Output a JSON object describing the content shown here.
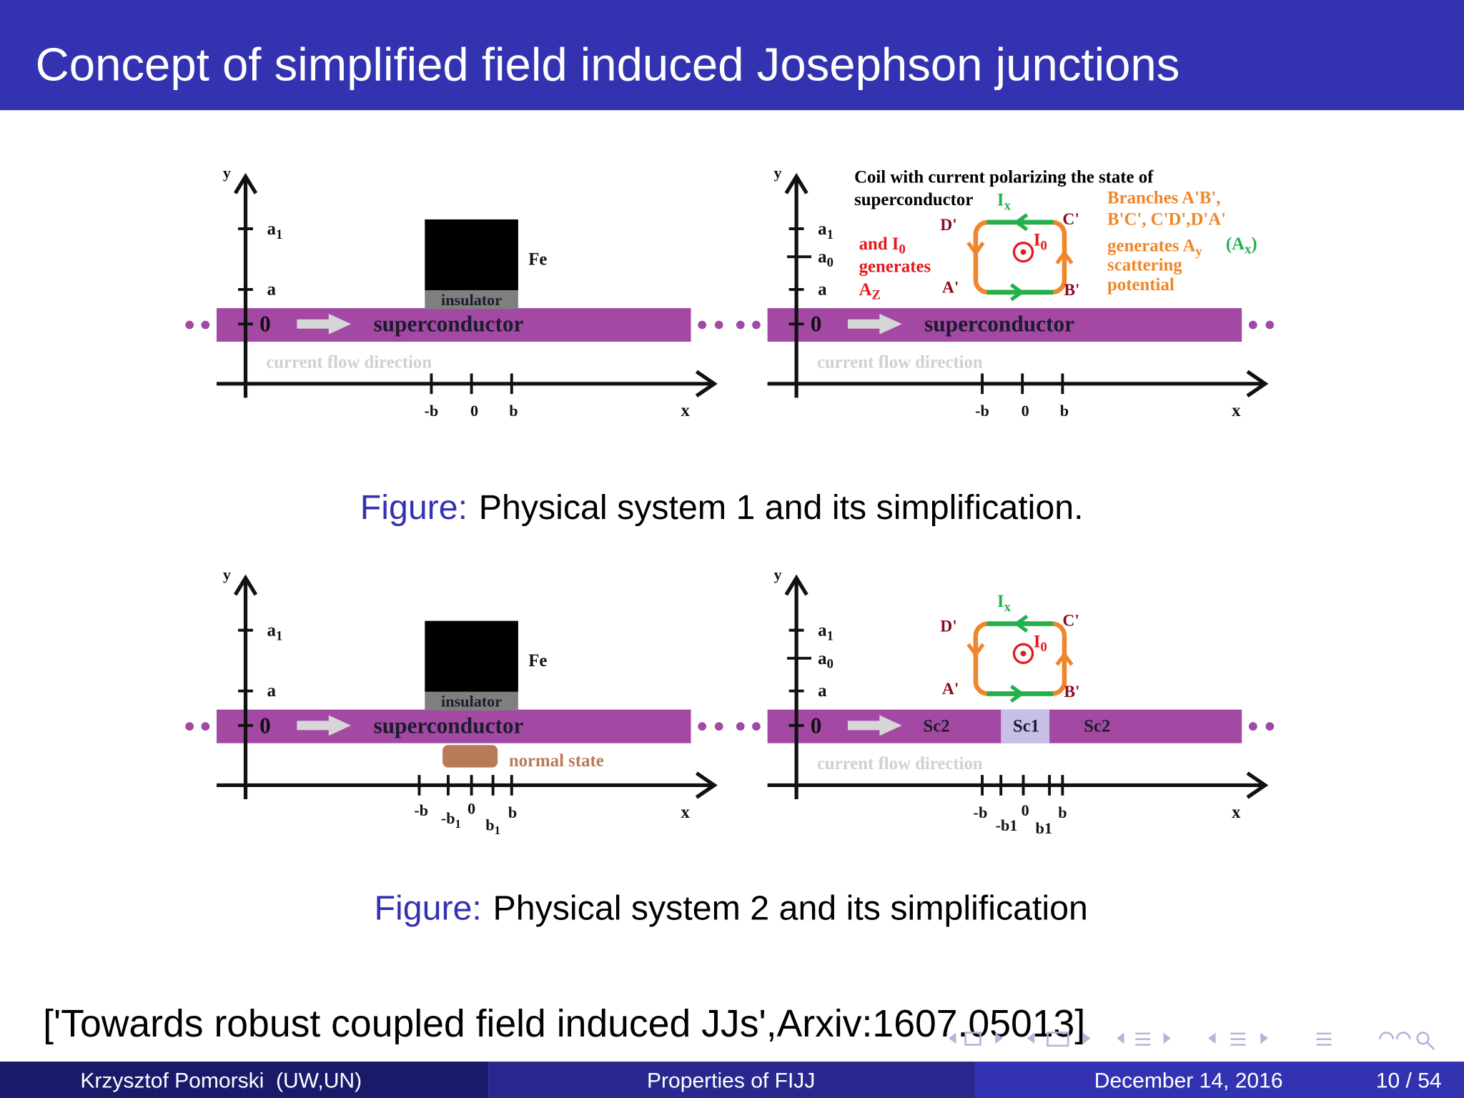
{
  "header": {
    "title": "Concept of simplified field induced Josephson junctions"
  },
  "figures": [
    {
      "panels": [
        {
          "y_label": "y",
          "x_label": "x",
          "y_ticks": [
            {
              "base": "a",
              "sub": "1"
            },
            "a",
            "0"
          ],
          "x_ticks": [
            "-b",
            "0",
            "b"
          ],
          "bar_labels": [
            "superconductor"
          ],
          "flow_label": "current flow direction",
          "fe": {
            "label": "Fe",
            "insulator": "insulator"
          }
        },
        {
          "y_label": "y",
          "x_label": "x",
          "y_ticks": [
            {
              "base": "a",
              "sub": "1"
            },
            {
              "base": "a",
              "sub": "0"
            },
            "a",
            "0"
          ],
          "x_ticks": [
            "-b",
            "0",
            "b"
          ],
          "bar_labels": [
            "superconductor"
          ],
          "flow_label": "current flow direction",
          "coil": {
            "current": {
              "base": "I",
              "sub": "x"
            },
            "corners": [
              "D'",
              "C'",
              "A'",
              "B'"
            ],
            "inner": {
              "base": "I",
              "sub": "0"
            }
          },
          "heading": [
            "Coil with current polarizing the state of",
            "superconductor"
          ],
          "red_note": [
            {
              "base": "and I",
              "sub": "0"
            },
            "generates",
            {
              "base": "A",
              "sub": "Z"
            }
          ],
          "orange_note": [
            "Branches A'B',",
            "B'C', C'D',D'A'",
            {
              "base": "generates A",
              "sub": "y"
            },
            "scattering",
            "potential"
          ],
          "green_note": {
            "base": "(A",
            "sub": "x",
            "tail": ")"
          }
        }
      ],
      "caption": {
        "label": "Figure:",
        "text": "Physical system 1 and its simplification."
      }
    },
    {
      "panels": [
        {
          "y_label": "y",
          "x_label": "x",
          "y_ticks": [
            {
              "base": "a",
              "sub": "1"
            },
            "a",
            "0"
          ],
          "x_ticks": [
            "-b",
            {
              "base": "-b",
              "sub": "1"
            },
            "0",
            {
              "base": "b",
              "sub": "1"
            },
            "b"
          ],
          "bar_labels": [
            "superconductor"
          ],
          "fe": {
            "label": "Fe",
            "insulator": "insulator"
          },
          "normal_state": "normal state"
        },
        {
          "y_label": "y",
          "x_label": "x",
          "y_ticks": [
            {
              "base": "a",
              "sub": "1"
            },
            {
              "base": "a",
              "sub": "0"
            },
            "a",
            "0"
          ],
          "x_ticks": [
            "-b",
            "-b1",
            "0",
            "b1",
            "b"
          ],
          "bar_labels": [
            "Sc2",
            "Sc1",
            "Sc2"
          ],
          "flow_label": "current flow direction",
          "coil": {
            "current": {
              "base": "I",
              "sub": "x"
            },
            "corners": [
              "D'",
              "C'",
              "A'",
              "B'"
            ],
            "inner": {
              "base": "I",
              "sub": "0"
            }
          }
        }
      ],
      "caption": {
        "label": "Figure:",
        "text": "Physical system 2 and its simplification"
      }
    }
  ],
  "reference": "['Towards robust coupled field induced JJs',Arxiv:1607.05013]",
  "footer": {
    "author": "Krzysztof Pomorski  (UW,UN)",
    "short_title": "Properties of FIJJ",
    "date": "December 14, 2016",
    "page": "10 / 54"
  }
}
